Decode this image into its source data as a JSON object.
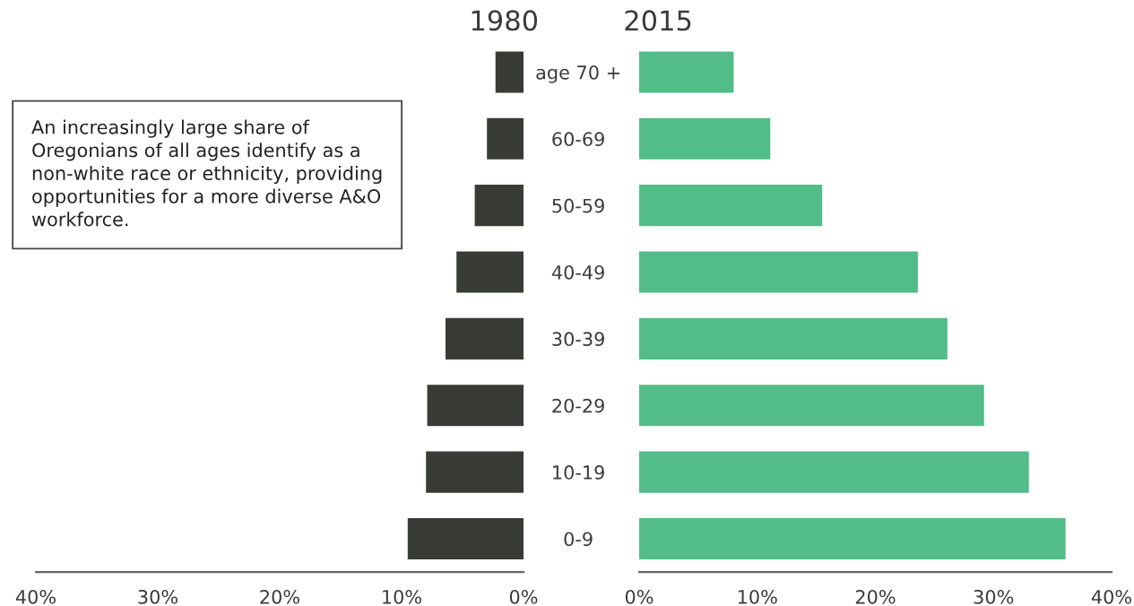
{
  "chart_data": [
    {
      "type": "bar",
      "orientation": "horizontal",
      "title": "1980",
      "categories": [
        "age 70 +",
        "60-69",
        "50-59",
        "40-49",
        "30-39",
        "20-29",
        "10-19",
        "0-9"
      ],
      "series": [
        {
          "color": "#393b36",
          "values": [
            2.3,
            3.0,
            4.0,
            5.5,
            6.4,
            7.9,
            8.0,
            9.5
          ]
        }
      ],
      "xlim": [
        40,
        0
      ],
      "xticks": [
        {
          "value": 40,
          "label": "40%"
        },
        {
          "value": 30,
          "label": "30%"
        },
        {
          "value": 20,
          "label": "20%"
        },
        {
          "value": 10,
          "label": "10%"
        },
        {
          "value": 0,
          "label": "0%"
        }
      ],
      "grid": false,
      "annotations": [
        "An increasingly large share of Oregonians of all ages identify as a non-white race or ethnicity, providing opportunities for a more diverse A&O workforce."
      ]
    },
    {
      "type": "bar",
      "orientation": "horizontal",
      "title": "2015",
      "categories": [
        null,
        null,
        null,
        null,
        null,
        null,
        null,
        null
      ],
      "series": [
        {
          "color": "#52bd88",
          "values": [
            8.0,
            11.1,
            15.5,
            23.6,
            26.1,
            29.2,
            33.0,
            36.1
          ]
        }
      ],
      "xlim": [
        0,
        40
      ],
      "tick_labels": "x",
      "xticks": [
        {
          "value": 0,
          "label": "0%"
        },
        {
          "value": 10,
          "label": "10%"
        },
        {
          "value": 20,
          "label": "20%"
        },
        {
          "value": 30,
          "label": "30%"
        },
        {
          "value": 40,
          "label": "40%"
        }
      ],
      "grid": false
    }
  ]
}
